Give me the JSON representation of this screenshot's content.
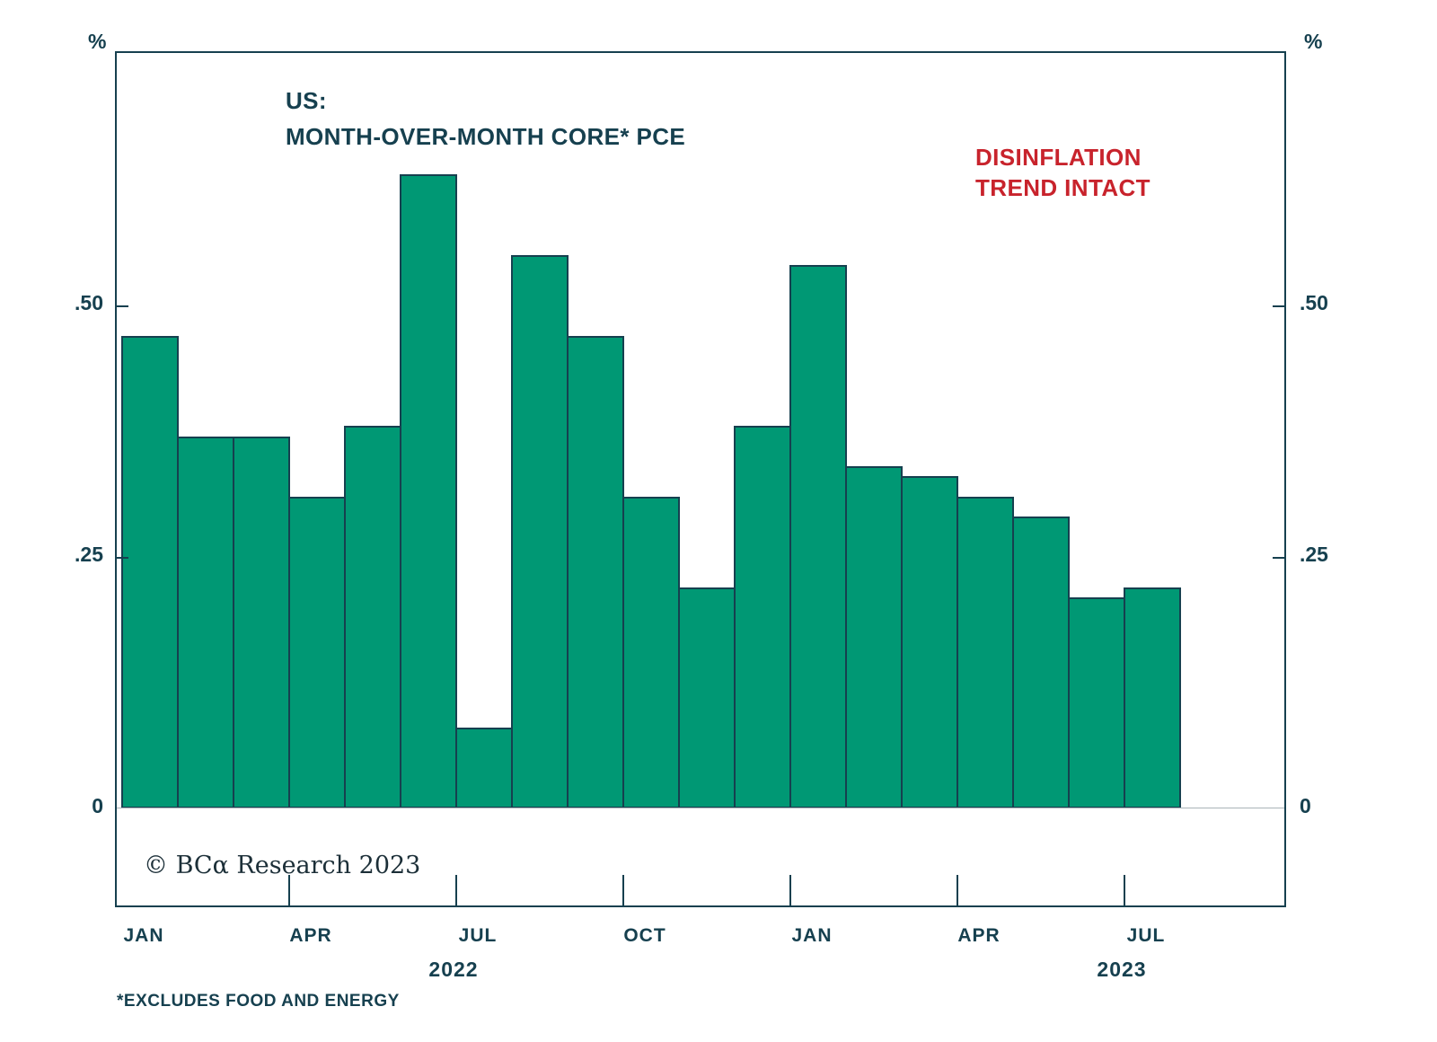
{
  "chart_data": {
    "type": "bar",
    "title_line1": "US:",
    "title_line2": "MONTH-OVER-MONTH CORE* PCE",
    "annotation": [
      "DISINFLATION",
      "TREND INTACT"
    ],
    "unit": "%",
    "categories": [
      "Jan 2022",
      "Feb 2022",
      "Mar 2022",
      "Apr 2022",
      "May 2022",
      "Jun 2022",
      "Jul 2022",
      "Aug 2022",
      "Sep 2022",
      "Oct 2022",
      "Nov 2022",
      "Dec 2022",
      "Jan 2023",
      "Feb 2023",
      "Mar 2023",
      "Apr 2023",
      "May 2023",
      "Jun 2023",
      "Jul 2023"
    ],
    "values": [
      0.47,
      0.37,
      0.37,
      0.31,
      0.38,
      0.63,
      0.08,
      0.55,
      0.47,
      0.31,
      0.22,
      0.38,
      0.54,
      0.34,
      0.33,
      0.31,
      0.29,
      0.21,
      0.22
    ],
    "ylim": [
      0,
      0.7
    ],
    "yticks": [
      {
        "label": ".50",
        "value": 0.5
      },
      {
        "label": ".25",
        "value": 0.25
      },
      {
        "label": "0",
        "value": 0
      }
    ],
    "xticks": [
      {
        "label": "JAN",
        "index": 0
      },
      {
        "label": "APR",
        "index": 3
      },
      {
        "label": "JUL",
        "index": 6
      },
      {
        "label": "OCT",
        "index": 9
      },
      {
        "label": "JAN",
        "index": 12
      },
      {
        "label": "APR",
        "index": 15
      },
      {
        "label": "JUL",
        "index": 18
      }
    ],
    "year_labels": [
      {
        "label": "2022",
        "index": 6
      },
      {
        "label": "2023",
        "index": 18
      }
    ],
    "bar_color": "#009874",
    "bar_border_color": "#16404f",
    "text_color": "#16404f",
    "annotation_color": "#c8232c",
    "copyright": "© BCα Research 2023",
    "footnote": "*EXCLUDES FOOD AND ENERGY",
    "grid": false,
    "legend": false
  }
}
